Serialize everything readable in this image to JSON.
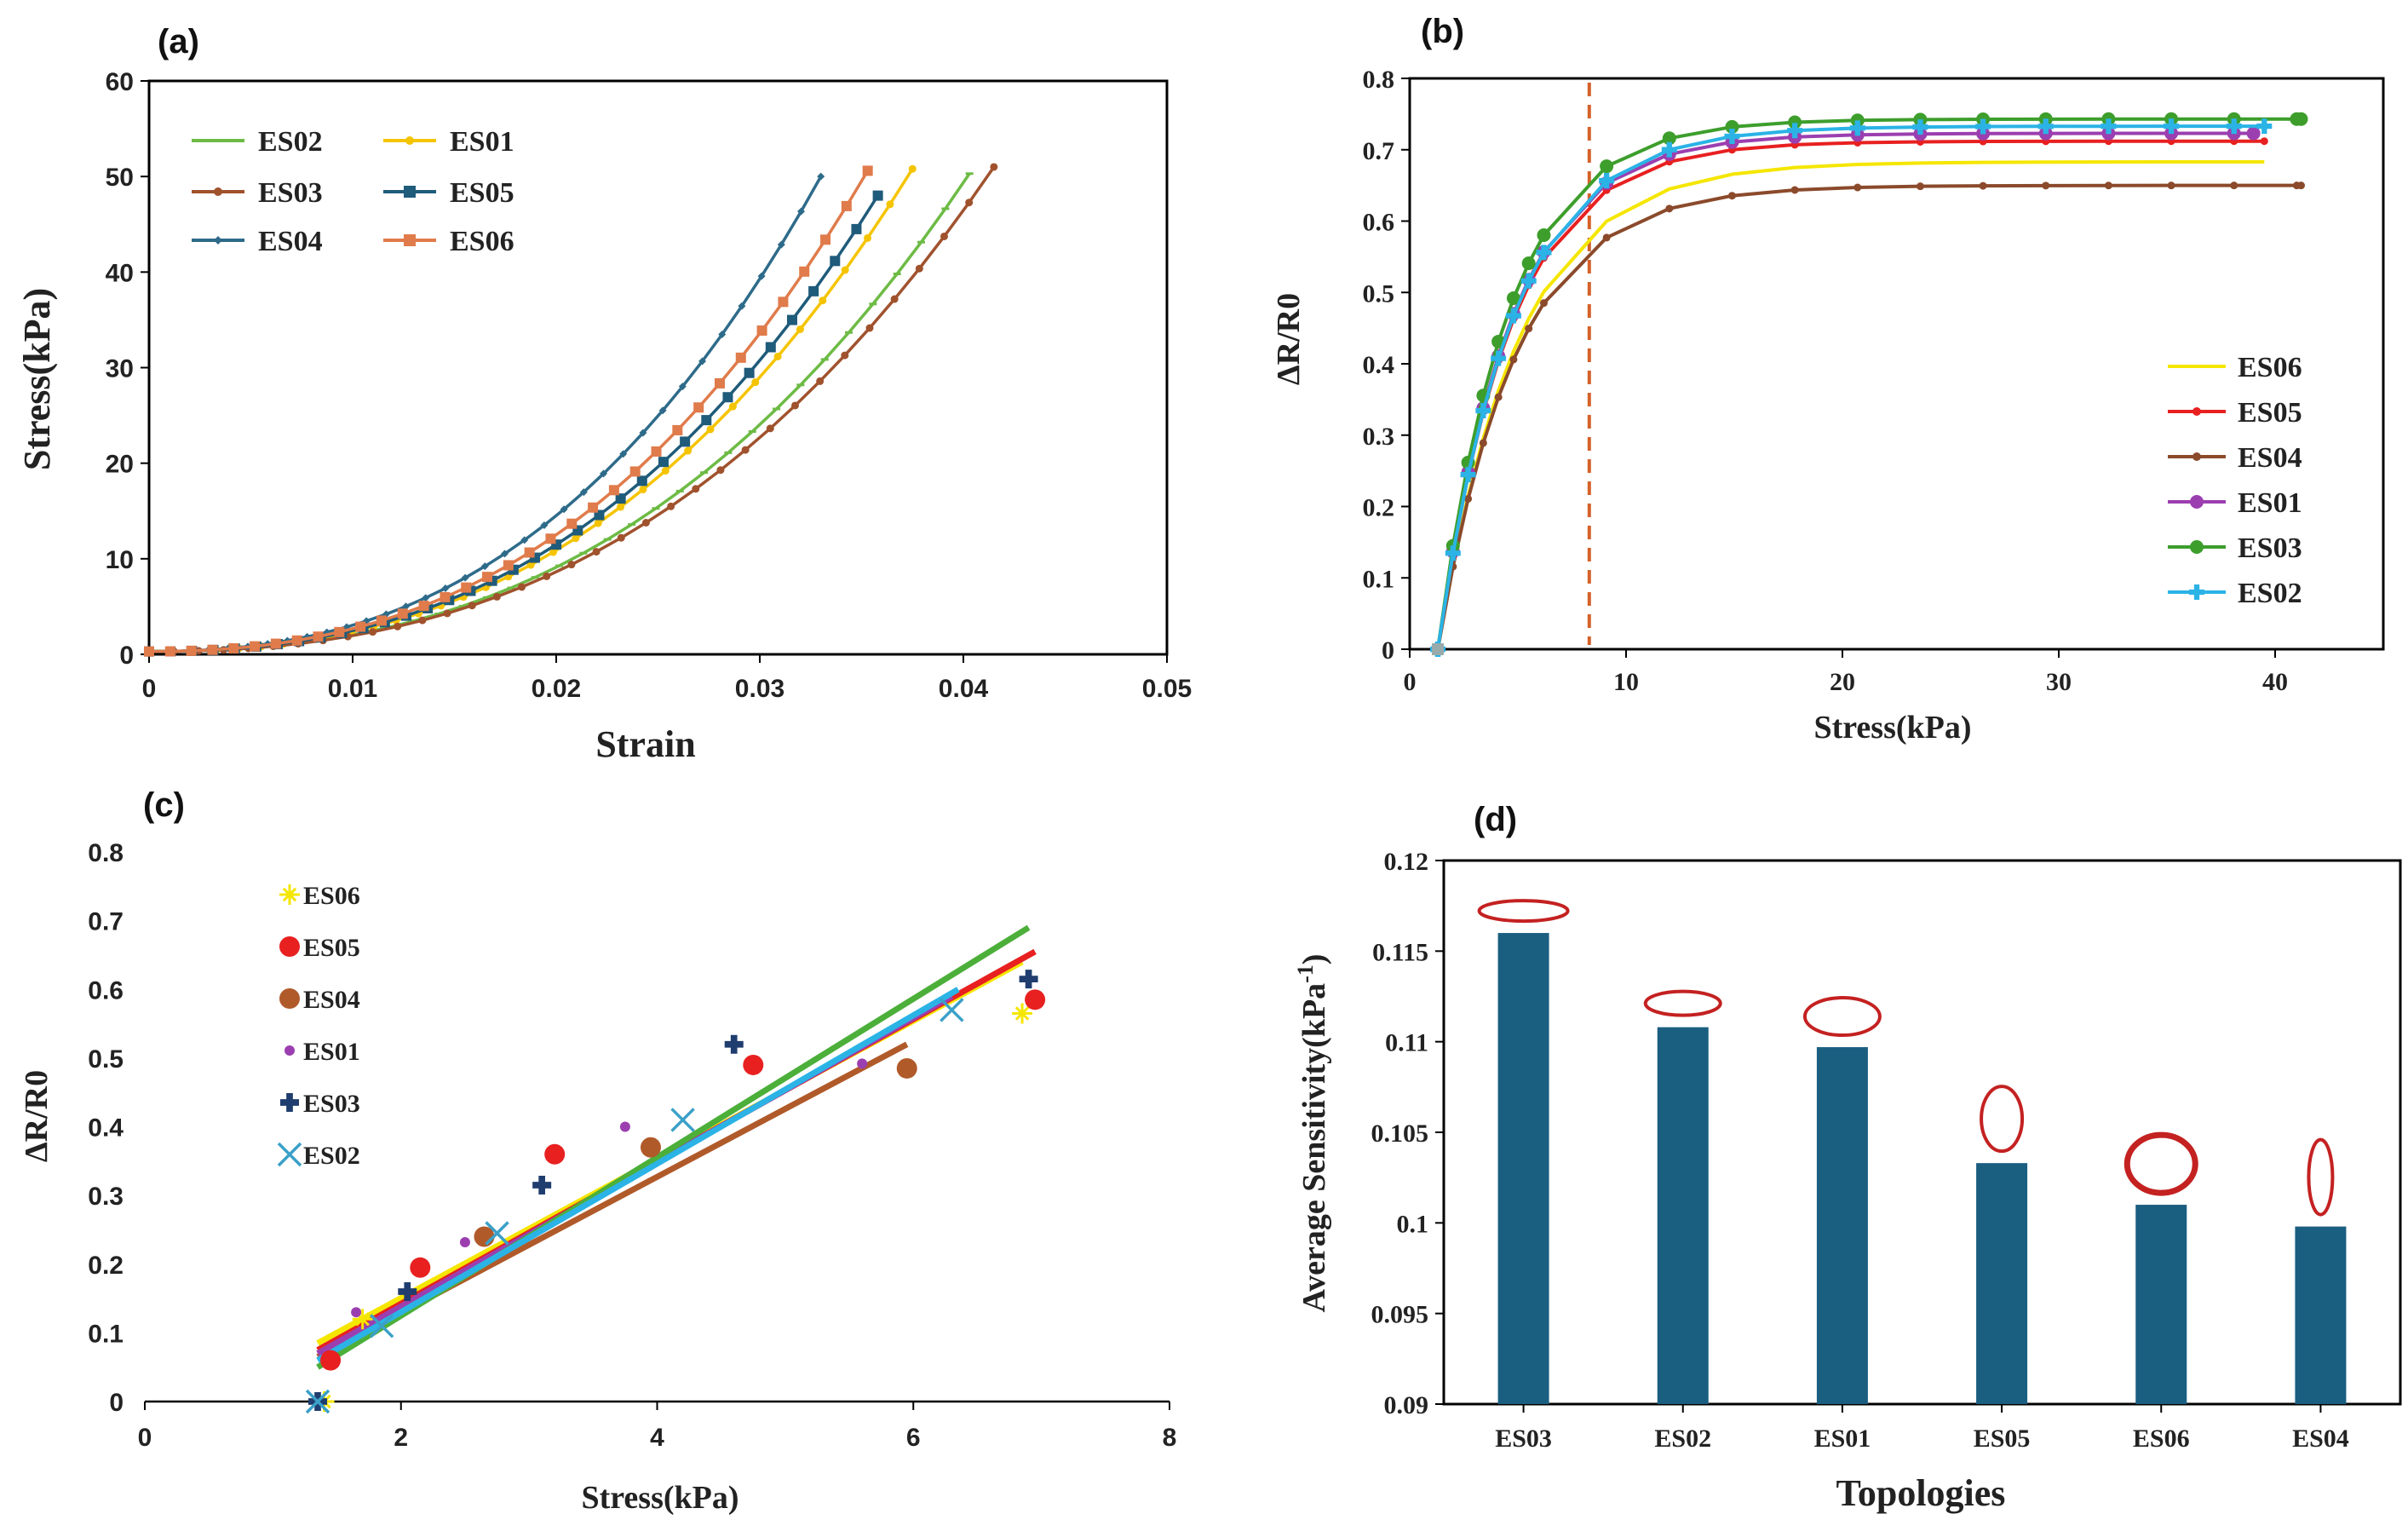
{
  "chart_data": [
    {
      "panel": "(a)",
      "type": "line",
      "xlabel": "Strain",
      "ylabel": "Stress(kPa)",
      "xlim": [
        0,
        0.05
      ],
      "ylim": [
        0,
        60
      ],
      "xticks": [
        "0",
        "0.01",
        "0.02",
        "0.03",
        "0.04",
        "0.05"
      ],
      "yticks": [
        "0",
        "10",
        "20",
        "30",
        "40",
        "50",
        "60"
      ],
      "legend": [
        "ES02",
        "ES01",
        "ES03",
        "ES05",
        "ES04",
        "ES06"
      ],
      "series": [
        {
          "name": "ES02",
          "color": "#6dbb45",
          "marker": "dash",
          "xmax": 0.0403,
          "ymax": 50.3
        },
        {
          "name": "ES01",
          "color": "#f5c400",
          "marker": "dot",
          "xmax": 0.0375,
          "ymax": 50.8
        },
        {
          "name": "ES03",
          "color": "#a0522d",
          "marker": "dot",
          "xmax": 0.0415,
          "ymax": 51.0
        },
        {
          "name": "ES05",
          "color": "#1f5b7a",
          "marker": "square",
          "xmax": 0.0358,
          "ymax": 48.0
        },
        {
          "name": "ES04",
          "color": "#2e6b8a",
          "marker": "diamond",
          "xmax": 0.033,
          "ymax": 50.0
        },
        {
          "name": "ES06",
          "color": "#e07b4b",
          "marker": "square",
          "xmax": 0.0353,
          "ymax": 50.6
        }
      ]
    },
    {
      "panel": "(b)",
      "type": "line",
      "xlabel": "Stress(kPa)",
      "ylabel": "ΔR/R0",
      "xlim": [
        0,
        45
      ],
      "ylim": [
        0,
        0.8
      ],
      "xticks": [
        "0",
        "10",
        "20",
        "30",
        "40"
      ],
      "yticks": [
        "0",
        "0.1",
        "0.2",
        "0.3",
        "0.4",
        "0.5",
        "0.6",
        "0.7",
        "0.8"
      ],
      "vline_x": 8.3,
      "legend": [
        "ES06",
        "ES05",
        "ES04",
        "ES01",
        "ES03",
        "ES02"
      ],
      "series": [
        {
          "name": "ES06",
          "color": "#f5e600",
          "plateau": 0.683,
          "k": 0.27,
          "xmax": 39.5
        },
        {
          "name": "ES05",
          "color": "#e82020",
          "plateau": 0.712,
          "k": 0.3,
          "xmax": 39.5
        },
        {
          "name": "ES04",
          "color": "#8b4a2b",
          "plateau": 0.65,
          "k": 0.28,
          "xmax": 41.2
        },
        {
          "name": "ES01",
          "color": "#9b3fb0",
          "plateau": 0.723,
          "k": 0.3,
          "xmax": 39.0
        },
        {
          "name": "ES03",
          "color": "#3d9e2c",
          "plateau": 0.743,
          "k": 0.31,
          "xmax": 41.2
        },
        {
          "name": "ES02",
          "color": "#2bb3e6",
          "plateau": 0.733,
          "k": 0.29,
          "xmax": 39.5
        }
      ]
    },
    {
      "panel": "(c)",
      "type": "scatter",
      "xlabel": "Stress(kPa)",
      "ylabel": "ΔR/R0",
      "xlim": [
        0,
        8
      ],
      "ylim": [
        0,
        0.8
      ],
      "xticks": [
        "0",
        "2",
        "4",
        "6",
        "8"
      ],
      "yticks": [
        "0",
        "0.1",
        "0.2",
        "0.3",
        "0.4",
        "0.5",
        "0.6",
        "0.7",
        "0.8"
      ],
      "legend": [
        "ES06",
        "ES05",
        "ES04",
        "ES01",
        "ES03",
        "ES02"
      ],
      "series": [
        {
          "name": "ES06",
          "color": "#f5e600",
          "marker": "star",
          "points": [
            [
              1.4,
              0.0
            ],
            [
              1.7,
              0.12
            ],
            [
              6.85,
              0.565
            ]
          ],
          "fit": [
            [
              1.35,
              0.085
            ],
            [
              6.85,
              0.64
            ]
          ]
        },
        {
          "name": "ES05",
          "color": "#e82020",
          "marker": "circle",
          "points": [
            [
              1.45,
              0.06
            ],
            [
              2.15,
              0.195
            ],
            [
              3.2,
              0.36
            ],
            [
              4.75,
              0.49
            ],
            [
              6.95,
              0.585
            ]
          ],
          "fit": [
            [
              1.35,
              0.075
            ],
            [
              6.95,
              0.655
            ]
          ]
        },
        {
          "name": "ES04",
          "color": "#b05a2a",
          "marker": "circle",
          "points": [
            [
              2.65,
              0.24
            ],
            [
              3.95,
              0.37
            ],
            [
              5.95,
              0.485
            ]
          ],
          "fit": [
            [
              1.35,
              0.065
            ],
            [
              5.95,
              0.52
            ]
          ]
        },
        {
          "name": "ES01",
          "color": "#9b3fb0",
          "marker": "smalldot",
          "points": [
            [
              1.65,
              0.13
            ],
            [
              2.5,
              0.232
            ],
            [
              3.75,
              0.4
            ],
            [
              5.6,
              0.492
            ]
          ],
          "fit": [
            [
              1.35,
              0.07
            ],
            [
              6.3,
              0.59
            ]
          ]
        },
        {
          "name": "ES03",
          "color": "#1f3d6e",
          "marker": "plus",
          "points": [
            [
              1.35,
              0.0
            ],
            [
              2.05,
              0.16
            ],
            [
              3.1,
              0.315
            ],
            [
              4.6,
              0.52
            ],
            [
              6.9,
              0.615
            ]
          ],
          "fit": [
            [
              1.35,
              0.05
            ],
            [
              6.9,
              0.69
            ]
          ]
        },
        {
          "name": "ES02",
          "color": "#3aa0c8",
          "marker": "x",
          "points": [
            [
              1.35,
              0.0
            ],
            [
              1.85,
              0.11
            ],
            [
              2.75,
              0.245
            ],
            [
              4.2,
              0.41
            ],
            [
              6.3,
              0.57
            ]
          ],
          "fit": [
            [
              1.35,
              0.06
            ],
            [
              6.35,
              0.6
            ]
          ]
        }
      ]
    },
    {
      "panel": "(d)",
      "type": "bar",
      "xlabel": "Topologies",
      "ylabel": "Average Sensitivity(kPa",
      "ylabel_sup": "-1",
      "ylabel_end": ")",
      "ylim": [
        0.09,
        0.12
      ],
      "yticks": [
        "0.09",
        "0.095",
        "0.1",
        "0.105",
        "0.11",
        "0.115",
        "0.12"
      ],
      "categories": [
        "ES03",
        "ES02",
        "ES01",
        "ES05",
        "ES06",
        "ES04"
      ],
      "values": [
        0.116,
        0.1108,
        0.1097,
        0.1033,
        0.101,
        0.0998
      ],
      "bar_color": "#1a5e80",
      "ellipse_color": "#c42121"
    }
  ]
}
